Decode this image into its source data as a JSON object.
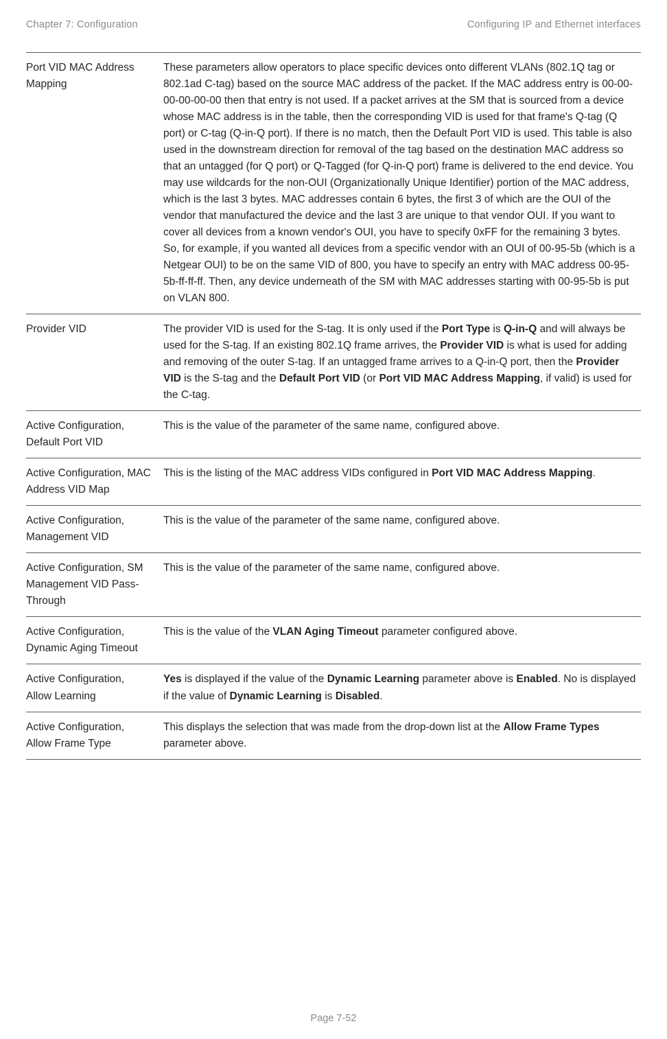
{
  "header": {
    "left": "Chapter 7:  Configuration",
    "right": "Configuring IP and Ethernet interfaces"
  },
  "footer": "Page 7-52",
  "rows": [
    {
      "label": "Port VID MAC Address Mapping",
      "desc": [
        {
          "t": "These parameters allow operators to place specific devices onto different VLANs (802.1Q tag or 802.1ad C-tag) based on the source MAC address of the packet. If the MAC address entry is 00-00-00-00-00-00 then that entry is not used. If a packet arrives at the SM that is sourced from a device whose MAC address is in the table, then the corresponding VID is used for that frame's Q-tag (Q port) or C-tag (Q-in-Q port). If there is no match, then the Default Port VID is used. This table is also used in the downstream direction for removal of the tag based on the destination MAC address so that an untagged (for Q port) or Q-Tagged (for Q-in-Q port) frame is delivered to the end device. You may use wildcards for the non-OUI (Organizationally Unique Identifier) portion of the MAC address, which is the last 3 bytes. MAC addresses contain 6 bytes, the first 3 of which are the OUI of the vendor that manufactured the device and the last 3 are unique to that vendor OUI. If you want to cover all devices from a known vendor's OUI, you have to specify 0xFF for the remaining 3 bytes. So, for example, if you wanted all devices from a specific vendor with an OUI of 00-95-5b (which is a Netgear OUI) to be on the same VID of 800, you have to specify an entry with MAC address 00-95-5b-ff-ff-ff. Then, any device underneath of the SM with MAC addresses starting with 00-95-5b is put on VLAN 800."
        }
      ]
    },
    {
      "label": "Provider VID",
      "desc": [
        {
          "t": "The provider VID is used for the S-tag. It is only used if the "
        },
        {
          "t": "Port Type",
          "b": true
        },
        {
          "t": " is "
        },
        {
          "t": "Q-in-Q",
          "b": true
        },
        {
          "t": " and will always be used for the S-tag. If an existing 802.1Q frame arrives, the "
        },
        {
          "t": "Provider VID",
          "b": true
        },
        {
          "t": " is what is used for adding and removing of the outer S-tag. If an untagged frame arrives to a Q-in-Q port, then the "
        },
        {
          "t": "Provider VID",
          "b": true
        },
        {
          "t": " is the S-tag and the "
        },
        {
          "t": "Default Port VID",
          "b": true
        },
        {
          "t": " (or "
        },
        {
          "t": "Port VID MAC Address Mapping",
          "b": true
        },
        {
          "t": ", if valid) is used for the C-tag."
        }
      ]
    },
    {
      "label": "Active Configuration, Default Port VID",
      "desc": [
        {
          "t": "This is the value of the parameter of the same name, configured above."
        }
      ]
    },
    {
      "label": "Active Configuration, MAC Address VID Map",
      "desc": [
        {
          "t": "This is the listing of the MAC address VIDs configured in "
        },
        {
          "t": "Port VID MAC Address Mapping",
          "b": true
        },
        {
          "t": "."
        }
      ]
    },
    {
      "label": "Active Configuration, Management VID",
      "desc": [
        {
          "t": "This is the value of the parameter of the same name, configured above."
        }
      ]
    },
    {
      "label": "Active Configuration, SM Management VID Pass-Through",
      "desc": [
        {
          "t": "This is the value of the parameter of the same name, configured above."
        }
      ]
    },
    {
      "label": "Active Configuration, Dynamic Aging Timeout",
      "desc": [
        {
          "t": "This is the value of the "
        },
        {
          "t": "VLAN Aging Timeout",
          "b": true
        },
        {
          "t": " parameter configured above."
        }
      ]
    },
    {
      "label": "Active Configuration, Allow Learning",
      "desc": [
        {
          "t": "Yes",
          "b": true
        },
        {
          "t": " is displayed if the value of the "
        },
        {
          "t": "Dynamic Learning",
          "b": true
        },
        {
          "t": " parameter above is "
        },
        {
          "t": "Enabled",
          "b": true
        },
        {
          "t": ". No is displayed if the value of "
        },
        {
          "t": "Dynamic Learning",
          "b": true
        },
        {
          "t": " is "
        },
        {
          "t": "Disabled",
          "b": true
        },
        {
          "t": "."
        }
      ]
    },
    {
      "label": "Active Configuration, Allow Frame Type",
      "desc": [
        {
          "t": "This displays the selection that was made from the drop-down list at the "
        },
        {
          "t": "Allow Frame Types",
          "b": true
        },
        {
          "t": " parameter above."
        }
      ]
    }
  ]
}
